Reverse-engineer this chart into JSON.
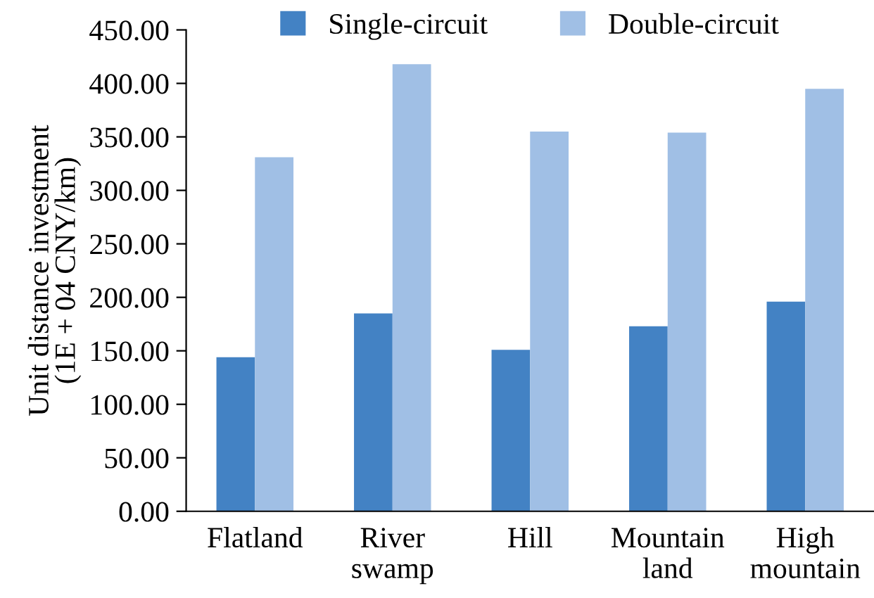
{
  "chart_data": {
    "type": "bar",
    "ylabel": "Unit distance investment\n(1E + 04 CNY/km)",
    "categories": [
      "Flatland",
      "River\nswamp",
      "Hill",
      "Mountain\nland",
      "High\nmountain"
    ],
    "series": [
      {
        "name": "Single-circuit",
        "color": "#4382c4",
        "values": [
          144,
          185,
          151,
          173,
          196
        ]
      },
      {
        "name": "Double-circuit",
        "color": "#a0bfe5",
        "values": [
          331,
          418,
          355,
          354,
          395
        ]
      }
    ],
    "ylim": [
      0,
      450
    ],
    "yticks": [
      {
        "value": 0,
        "label": "0.00"
      },
      {
        "value": 50,
        "label": "50.00"
      },
      {
        "value": 100,
        "label": "100.00"
      },
      {
        "value": 150,
        "label": "150.00"
      },
      {
        "value": 200,
        "label": "200.00"
      },
      {
        "value": 250,
        "label": "250.00"
      },
      {
        "value": 300,
        "label": "300.00"
      },
      {
        "value": 350,
        "label": "350.00"
      },
      {
        "value": 400,
        "label": "400.00"
      },
      {
        "value": 450,
        "label": "450.00"
      }
    ],
    "grid": false,
    "legend": "top"
  }
}
